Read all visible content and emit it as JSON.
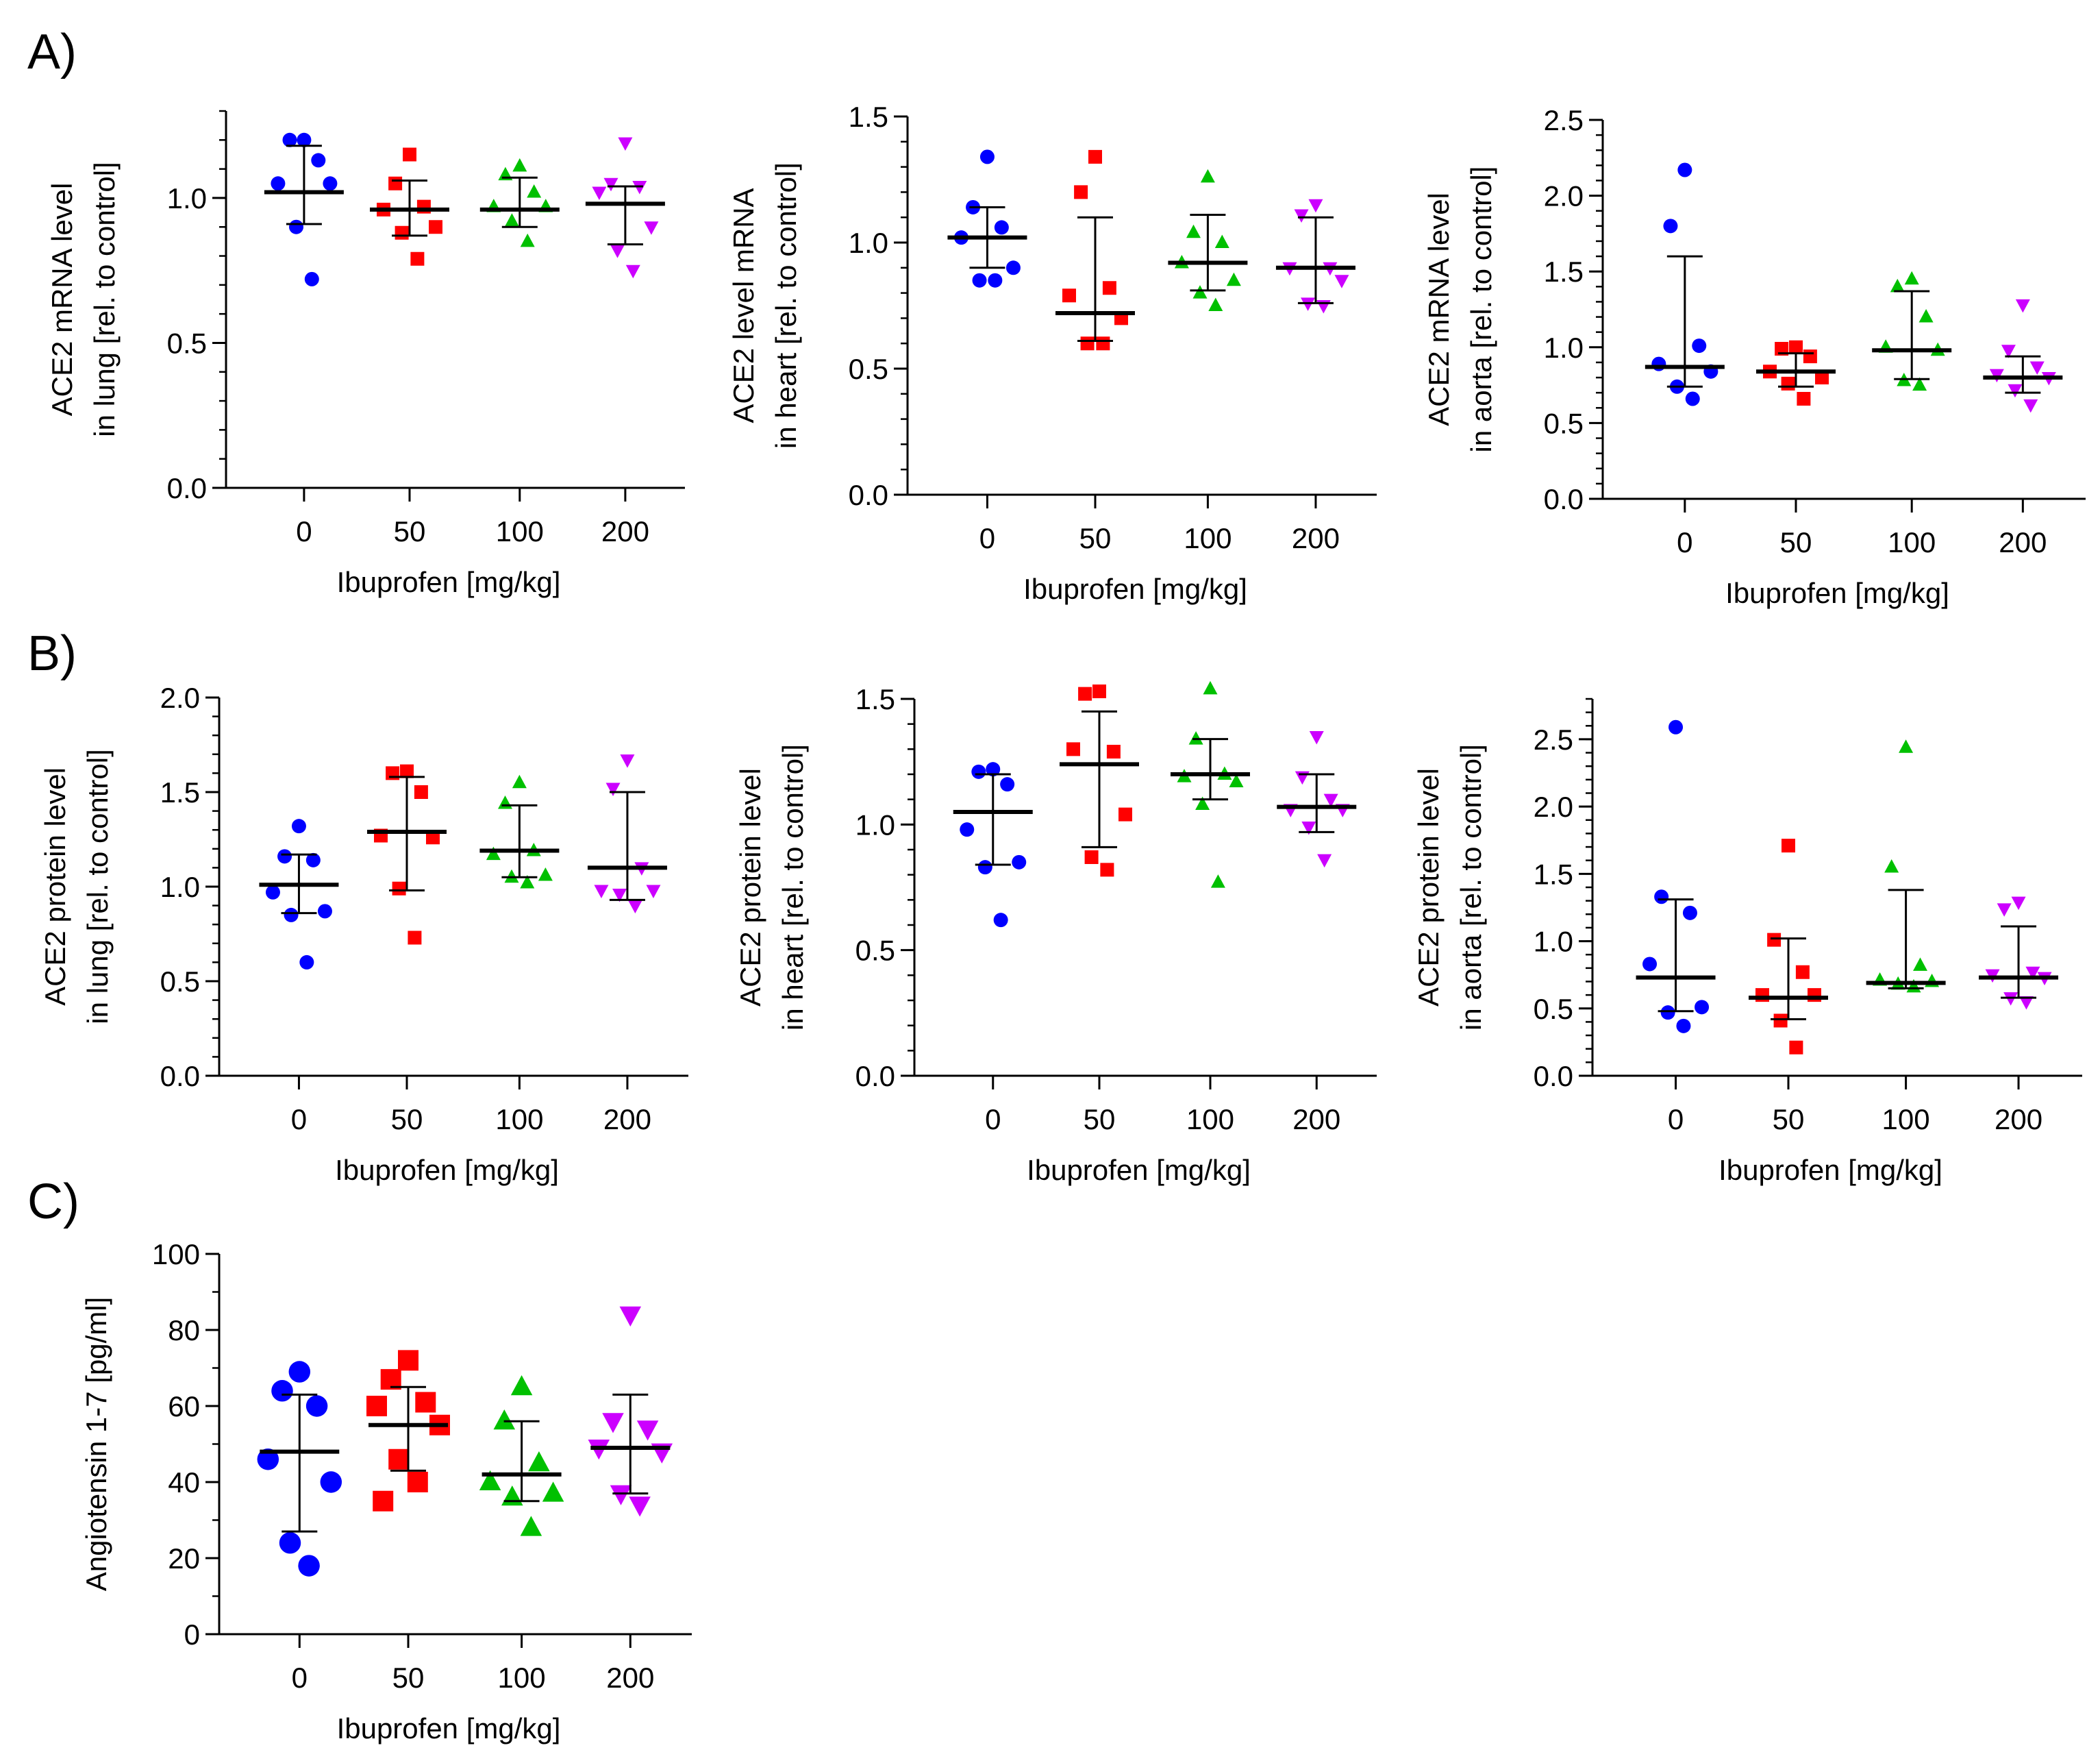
{
  "panel_labels": [
    "A)",
    "B)",
    "C)"
  ],
  "group_colors": [
    "#0000ff",
    "#ff0000",
    "#00c000",
    "#cc00ff"
  ],
  "group_markers": [
    "circle",
    "square",
    "triangle-up",
    "triangle-down"
  ],
  "chart_data": [
    {
      "id": "A1",
      "panel": "A",
      "type": "scatter",
      "ylabel_lines": [
        "ACE2 mRNA level",
        "in lung [rel. to control]"
      ],
      "xlabel": "Ibuprofen [mg/kg]",
      "categories": [
        "0",
        "50",
        "100",
        "200"
      ],
      "ylim": [
        0,
        1.3
      ],
      "yticks": [
        0.0,
        0.5,
        1.0
      ],
      "ytick_labels": [
        "0.0",
        "0.5",
        "1.0"
      ],
      "minor_step": 0.1,
      "groups": [
        {
          "name": "0",
          "points": [
            1.2,
            1.2,
            1.13,
            1.05,
            1.05,
            0.9,
            0.72
          ],
          "mean": 1.02,
          "sd_low": 0.91,
          "sd_high": 1.18
        },
        {
          "name": "50",
          "points": [
            1.15,
            1.05,
            0.97,
            0.96,
            0.9,
            0.88,
            0.79
          ],
          "mean": 0.96,
          "sd_low": 0.87,
          "sd_high": 1.06
        },
        {
          "name": "100",
          "points": [
            1.11,
            1.08,
            1.02,
            0.97,
            0.97,
            0.92,
            0.85
          ],
          "mean": 0.96,
          "sd_low": 0.9,
          "sd_high": 1.07
        },
        {
          "name": "200",
          "points": [
            1.19,
            1.05,
            1.04,
            1.02,
            0.9,
            0.82,
            0.75
          ],
          "mean": 0.98,
          "sd_low": 0.84,
          "sd_high": 1.04
        }
      ]
    },
    {
      "id": "A2",
      "panel": "A",
      "type": "scatter",
      "ylabel_lines": [
        "ACE2 level mRNA",
        "in heart [rel. to control]"
      ],
      "xlabel": "Ibuprofen [mg/kg]",
      "categories": [
        "0",
        "50",
        "100",
        "200"
      ],
      "ylim": [
        0,
        1.5
      ],
      "yticks": [
        0.0,
        0.5,
        1.0,
        1.5
      ],
      "ytick_labels": [
        "0.0",
        "0.5",
        "1.0",
        "1.5"
      ],
      "minor_step": 0.1,
      "groups": [
        {
          "name": "0",
          "points": [
            1.34,
            1.14,
            1.06,
            1.02,
            0.9,
            0.85,
            0.85
          ],
          "mean": 1.02,
          "sd_low": 0.9,
          "sd_high": 1.14
        },
        {
          "name": "50",
          "points": [
            1.34,
            1.2,
            0.82,
            0.79,
            0.7,
            0.6,
            0.6
          ],
          "mean": 0.72,
          "sd_low": 0.61,
          "sd_high": 1.1
        },
        {
          "name": "100",
          "points": [
            1.26,
            1.04,
            1.0,
            0.92,
            0.85,
            0.8,
            0.75
          ],
          "mean": 0.92,
          "sd_low": 0.81,
          "sd_high": 1.11
        },
        {
          "name": "200",
          "points": [
            1.15,
            1.11,
            0.9,
            0.9,
            0.85,
            0.76,
            0.75
          ],
          "mean": 0.9,
          "sd_low": 0.76,
          "sd_high": 1.1
        }
      ]
    },
    {
      "id": "A3",
      "panel": "A",
      "type": "scatter",
      "ylabel_lines": [
        "ACE2 mRNA level",
        "in aorta [rel. to control]"
      ],
      "xlabel": "Ibuprofen [mg/kg]",
      "categories": [
        "0",
        "50",
        "100",
        "200"
      ],
      "ylim": [
        0,
        2.5
      ],
      "yticks": [
        0.0,
        0.5,
        1.0,
        1.5,
        2.0,
        2.5
      ],
      "ytick_labels": [
        "0.0",
        "0.5",
        "1.0",
        "1.5",
        "2.0",
        "2.5"
      ],
      "minor_step": 0.1,
      "groups": [
        {
          "name": "0",
          "points": [
            2.17,
            1.8,
            1.01,
            0.89,
            0.84,
            0.74,
            0.66
          ],
          "mean": 0.87,
          "sd_low": 0.74,
          "sd_high": 1.6
        },
        {
          "name": "50",
          "points": [
            1.0,
            0.99,
            0.94,
            0.84,
            0.8,
            0.76,
            0.66
          ],
          "mean": 0.84,
          "sd_low": 0.74,
          "sd_high": 0.96
        },
        {
          "name": "100",
          "points": [
            1.45,
            1.4,
            1.2,
            1.0,
            0.98,
            0.78,
            0.75
          ],
          "mean": 0.98,
          "sd_low": 0.79,
          "sd_high": 1.37
        },
        {
          "name": "200",
          "points": [
            1.28,
            0.98,
            0.87,
            0.82,
            0.8,
            0.72,
            0.62
          ],
          "mean": 0.8,
          "sd_low": 0.7,
          "sd_high": 0.94
        }
      ]
    },
    {
      "id": "B1",
      "panel": "B",
      "type": "scatter",
      "ylabel_lines": [
        "ACE2 protein level",
        "in lung [rel. to control]"
      ],
      "xlabel": "Ibuprofen [mg/kg]",
      "categories": [
        "0",
        "50",
        "100",
        "200"
      ],
      "ylim": [
        0,
        2.0
      ],
      "yticks": [
        0.0,
        0.5,
        1.0,
        1.5,
        2.0
      ],
      "ytick_labels": [
        "0.0",
        "0.5",
        "1.0",
        "1.5",
        "2.0"
      ],
      "minor_step": 0.1,
      "groups": [
        {
          "name": "0",
          "points": [
            1.32,
            1.16,
            1.14,
            0.97,
            0.87,
            0.85,
            0.6
          ],
          "mean": 1.01,
          "sd_low": 0.86,
          "sd_high": 1.17
        },
        {
          "name": "50",
          "points": [
            1.61,
            1.6,
            1.5,
            1.27,
            1.26,
            0.99,
            0.73
          ],
          "mean": 1.29,
          "sd_low": 0.98,
          "sd_high": 1.58
        },
        {
          "name": "100",
          "points": [
            1.55,
            1.44,
            1.19,
            1.17,
            1.06,
            1.05,
            1.02
          ],
          "mean": 1.19,
          "sd_low": 1.05,
          "sd_high": 1.43
        },
        {
          "name": "200",
          "points": [
            1.67,
            1.52,
            1.1,
            0.98,
            0.98,
            0.96,
            0.9
          ],
          "mean": 1.1,
          "sd_low": 0.93,
          "sd_high": 1.5
        }
      ]
    },
    {
      "id": "B2",
      "panel": "B",
      "type": "scatter",
      "ylabel_lines": [
        "ACE2 protein level",
        "in heart [rel. to control]"
      ],
      "xlabel": "Ibuprofen [mg/kg]",
      "categories": [
        "0",
        "50",
        "100",
        "200"
      ],
      "ylim": [
        0,
        1.5
      ],
      "yticks": [
        0.0,
        0.5,
        1.0,
        1.5
      ],
      "ytick_labels": [
        "0.0",
        "0.5",
        "1.0",
        "1.5"
      ],
      "minor_step": 0.1,
      "groups": [
        {
          "name": "0",
          "points": [
            1.22,
            1.21,
            1.16,
            0.98,
            0.85,
            0.83,
            0.62
          ],
          "mean": 1.05,
          "sd_low": 0.84,
          "sd_high": 1.2
        },
        {
          "name": "50",
          "points": [
            1.53,
            1.52,
            1.29,
            1.3,
            1.04,
            0.87,
            0.82
          ],
          "mean": 1.24,
          "sd_low": 0.91,
          "sd_high": 1.45
        },
        {
          "name": "100",
          "points": [
            1.54,
            1.34,
            1.2,
            1.19,
            1.17,
            1.08,
            0.77
          ],
          "mean": 1.2,
          "sd_low": 1.1,
          "sd_high": 1.34
        },
        {
          "name": "200",
          "points": [
            1.35,
            1.19,
            1.1,
            1.06,
            1.06,
            0.99,
            0.86
          ],
          "mean": 1.07,
          "sd_low": 0.97,
          "sd_high": 1.2
        }
      ]
    },
    {
      "id": "B3",
      "panel": "B",
      "type": "scatter",
      "ylabel_lines": [
        "ACE2 protein level",
        "in aorta [rel. to control]"
      ],
      "xlabel": "Ibuprofen [mg/kg]",
      "categories": [
        "0",
        "50",
        "100",
        "200"
      ],
      "ylim": [
        0,
        2.8
      ],
      "yticks": [
        0.0,
        0.5,
        1.0,
        1.5,
        2.0,
        2.5
      ],
      "ytick_labels": [
        "0.0",
        "0.5",
        "1.0",
        "1.5",
        "2.0",
        "2.5"
      ],
      "minor_step": 0.1,
      "groups": [
        {
          "name": "0",
          "points": [
            2.59,
            1.33,
            1.21,
            0.83,
            0.51,
            0.47,
            0.37
          ],
          "mean": 0.73,
          "sd_low": 0.48,
          "sd_high": 1.31
        },
        {
          "name": "50",
          "points": [
            1.71,
            1.01,
            0.77,
            0.6,
            0.6,
            0.41,
            0.21
          ],
          "mean": 0.58,
          "sd_low": 0.42,
          "sd_high": 1.02
        },
        {
          "name": "100",
          "points": [
            2.44,
            1.55,
            0.82,
            0.71,
            0.7,
            0.68,
            0.66
          ],
          "mean": 0.69,
          "sd_low": 0.65,
          "sd_high": 1.38
        },
        {
          "name": "200",
          "points": [
            1.29,
            1.24,
            0.77,
            0.75,
            0.73,
            0.58,
            0.55
          ],
          "mean": 0.73,
          "sd_low": 0.58,
          "sd_high": 1.11
        }
      ]
    },
    {
      "id": "C1",
      "panel": "C",
      "type": "scatter",
      "ylabel_lines": [
        "Angiotensin 1-7 [pg/ml]"
      ],
      "xlabel": "Ibuprofen [mg/kg]",
      "categories": [
        "0",
        "50",
        "100",
        "200"
      ],
      "ylim": [
        0,
        100
      ],
      "yticks": [
        0,
        20,
        40,
        60,
        80,
        100
      ],
      "ytick_labels": [
        "0",
        "20",
        "40",
        "60",
        "80",
        "100"
      ],
      "minor_step": 10,
      "groups": [
        {
          "name": "0",
          "points": [
            69,
            64,
            60,
            46,
            40,
            24,
            18
          ],
          "mean": 48,
          "sd_low": 27,
          "sd_high": 63
        },
        {
          "name": "50",
          "points": [
            72,
            67,
            61,
            60,
            55,
            46,
            40,
            35
          ],
          "mean": 55,
          "sd_low": 43,
          "sd_high": 65
        },
        {
          "name": "100",
          "points": [
            65,
            56,
            45,
            40,
            37,
            36,
            28
          ],
          "mean": 42,
          "sd_low": 35,
          "sd_high": 56
        },
        {
          "name": "200",
          "points": [
            84,
            56,
            54,
            49,
            48,
            37,
            34
          ],
          "mean": 49,
          "sd_low": 37,
          "sd_high": 63
        }
      ]
    }
  ]
}
